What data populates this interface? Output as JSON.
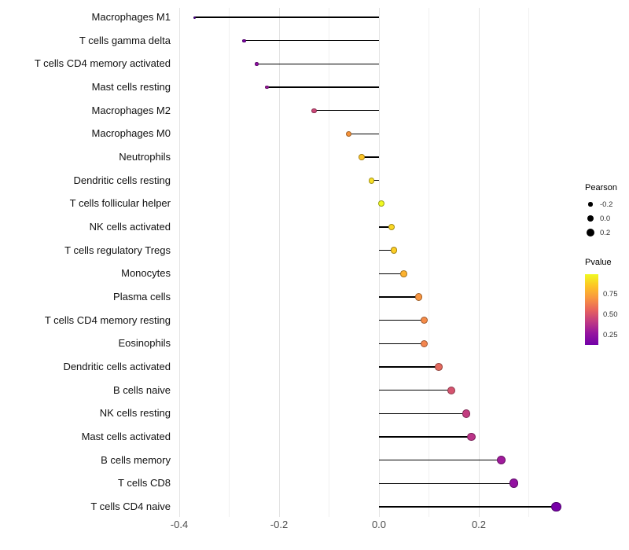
{
  "chart_data": {
    "type": "scatter",
    "subtype": "lollipop",
    "title": "",
    "xlabel": "",
    "ylabel": "",
    "xlim": [
      -0.405,
      0.39
    ],
    "grid": true,
    "x_axis": {
      "tick_labels": [
        "-0.4",
        "-0.2",
        "0.0",
        "0.2"
      ],
      "tick_values": [
        -0.4,
        -0.2,
        0.0,
        0.2
      ],
      "minor_tick_values": [
        -0.3,
        -0.1,
        0.1,
        0.3
      ]
    },
    "points": [
      {
        "label": "Macrophages M1",
        "pearson": -0.37,
        "color": "#5601a4"
      },
      {
        "label": "T cells gamma delta",
        "pearson": -0.27,
        "color": "#7e03a8"
      },
      {
        "label": "T cells CD4 memory activated",
        "pearson": -0.245,
        "color": "#8f0da4"
      },
      {
        "label": "Mast cells resting",
        "pearson": -0.225,
        "color": "#9c179e"
      },
      {
        "label": "Macrophages M2",
        "pearson": -0.13,
        "color": "#cc4778"
      },
      {
        "label": "Macrophages M0",
        "pearson": -0.06,
        "color": "#f69239"
      },
      {
        "label": "Neutrophils",
        "pearson": -0.035,
        "color": "#fdc527"
      },
      {
        "label": "Dendritic cells resting",
        "pearson": -0.015,
        "color": "#f8df25"
      },
      {
        "label": "T cells follicular helper",
        "pearson": 0.005,
        "color": "#f0f921"
      },
      {
        "label": "NK cells activated",
        "pearson": 0.025,
        "color": "#fbd724"
      },
      {
        "label": "T cells regulatory Tregs",
        "pearson": 0.03,
        "color": "#fccd25"
      },
      {
        "label": "Monocytes",
        "pearson": 0.05,
        "color": "#fdb22f"
      },
      {
        "label": "Plasma cells",
        "pearson": 0.08,
        "color": "#f89540"
      },
      {
        "label": "T cells CD4 memory resting",
        "pearson": 0.09,
        "color": "#f58b47"
      },
      {
        "label": "Eosinophils",
        "pearson": 0.09,
        "color": "#f3854e"
      },
      {
        "label": "Dendritic cells activated",
        "pearson": 0.12,
        "color": "#e4695e"
      },
      {
        "label": "B cells naive",
        "pearson": 0.145,
        "color": "#d5536f"
      },
      {
        "label": "NK cells resting",
        "pearson": 0.175,
        "color": "#c33d80"
      },
      {
        "label": "Mast cells activated",
        "pearson": 0.185,
        "color": "#ba3488"
      },
      {
        "label": "B cells memory",
        "pearson": 0.245,
        "color": "#a01a9c"
      },
      {
        "label": "T cells CD8",
        "pearson": 0.27,
        "color": "#9311a1"
      },
      {
        "label": "T cells CD4 naive",
        "pearson": 0.355,
        "color": "#7801a8"
      }
    ],
    "legend": {
      "size": {
        "title": "Pearson",
        "entries": [
          {
            "label": "-0.2",
            "value": -0.2
          },
          {
            "label": "0.0",
            "value": 0.0
          },
          {
            "label": "0.2",
            "value": 0.2
          }
        ]
      },
      "color": {
        "title": "Pvalue",
        "tick_labels": [
          "0.75",
          "0.50",
          "0.25"
        ],
        "gradient_stops": [
          "#f0f921",
          "#fdc425",
          "#f9973f",
          "#e8645c",
          "#c13b82",
          "#96159f",
          "#7201a8"
        ]
      }
    }
  },
  "colors": {
    "background": "#ffffff",
    "stem": "#000000",
    "grid_major": "#e3e3e3",
    "grid_minor": "#f0f0f0",
    "axis_text": "#4d4d4d",
    "label_text": "#111111",
    "legend_dot": "#000000"
  }
}
